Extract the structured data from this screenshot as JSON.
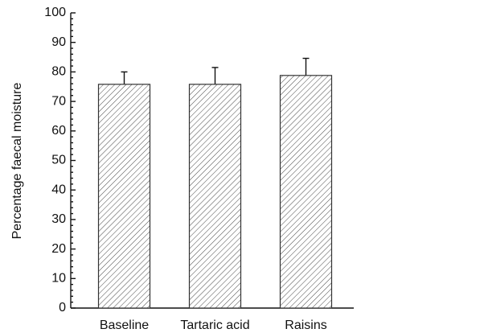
{
  "chart_data": {
    "type": "bar",
    "y_label": "Percentage faecal moisture",
    "categories": [
      "Baseline",
      "Tartaric acid",
      "Raisins"
    ],
    "values": [
      75.8,
      75.8,
      78.8
    ],
    "errors": [
      4.2,
      5.7,
      5.8
    ],
    "color": "#333333",
    "ylim": [
      0,
      100
    ],
    "yticks": [
      0,
      10,
      20,
      30,
      40,
      50,
      60,
      70,
      80,
      90,
      100
    ],
    "yminorticks": [
      2,
      4,
      6,
      8,
      12,
      14,
      16,
      18,
      22,
      24,
      26,
      28,
      32,
      34,
      36,
      38,
      42,
      44,
      46,
      48,
      52,
      54,
      56,
      58,
      62,
      64,
      66,
      68,
      72,
      74,
      76,
      78,
      82,
      84,
      86,
      88,
      92,
      94,
      96,
      98
    ],
    "grid": false
  }
}
